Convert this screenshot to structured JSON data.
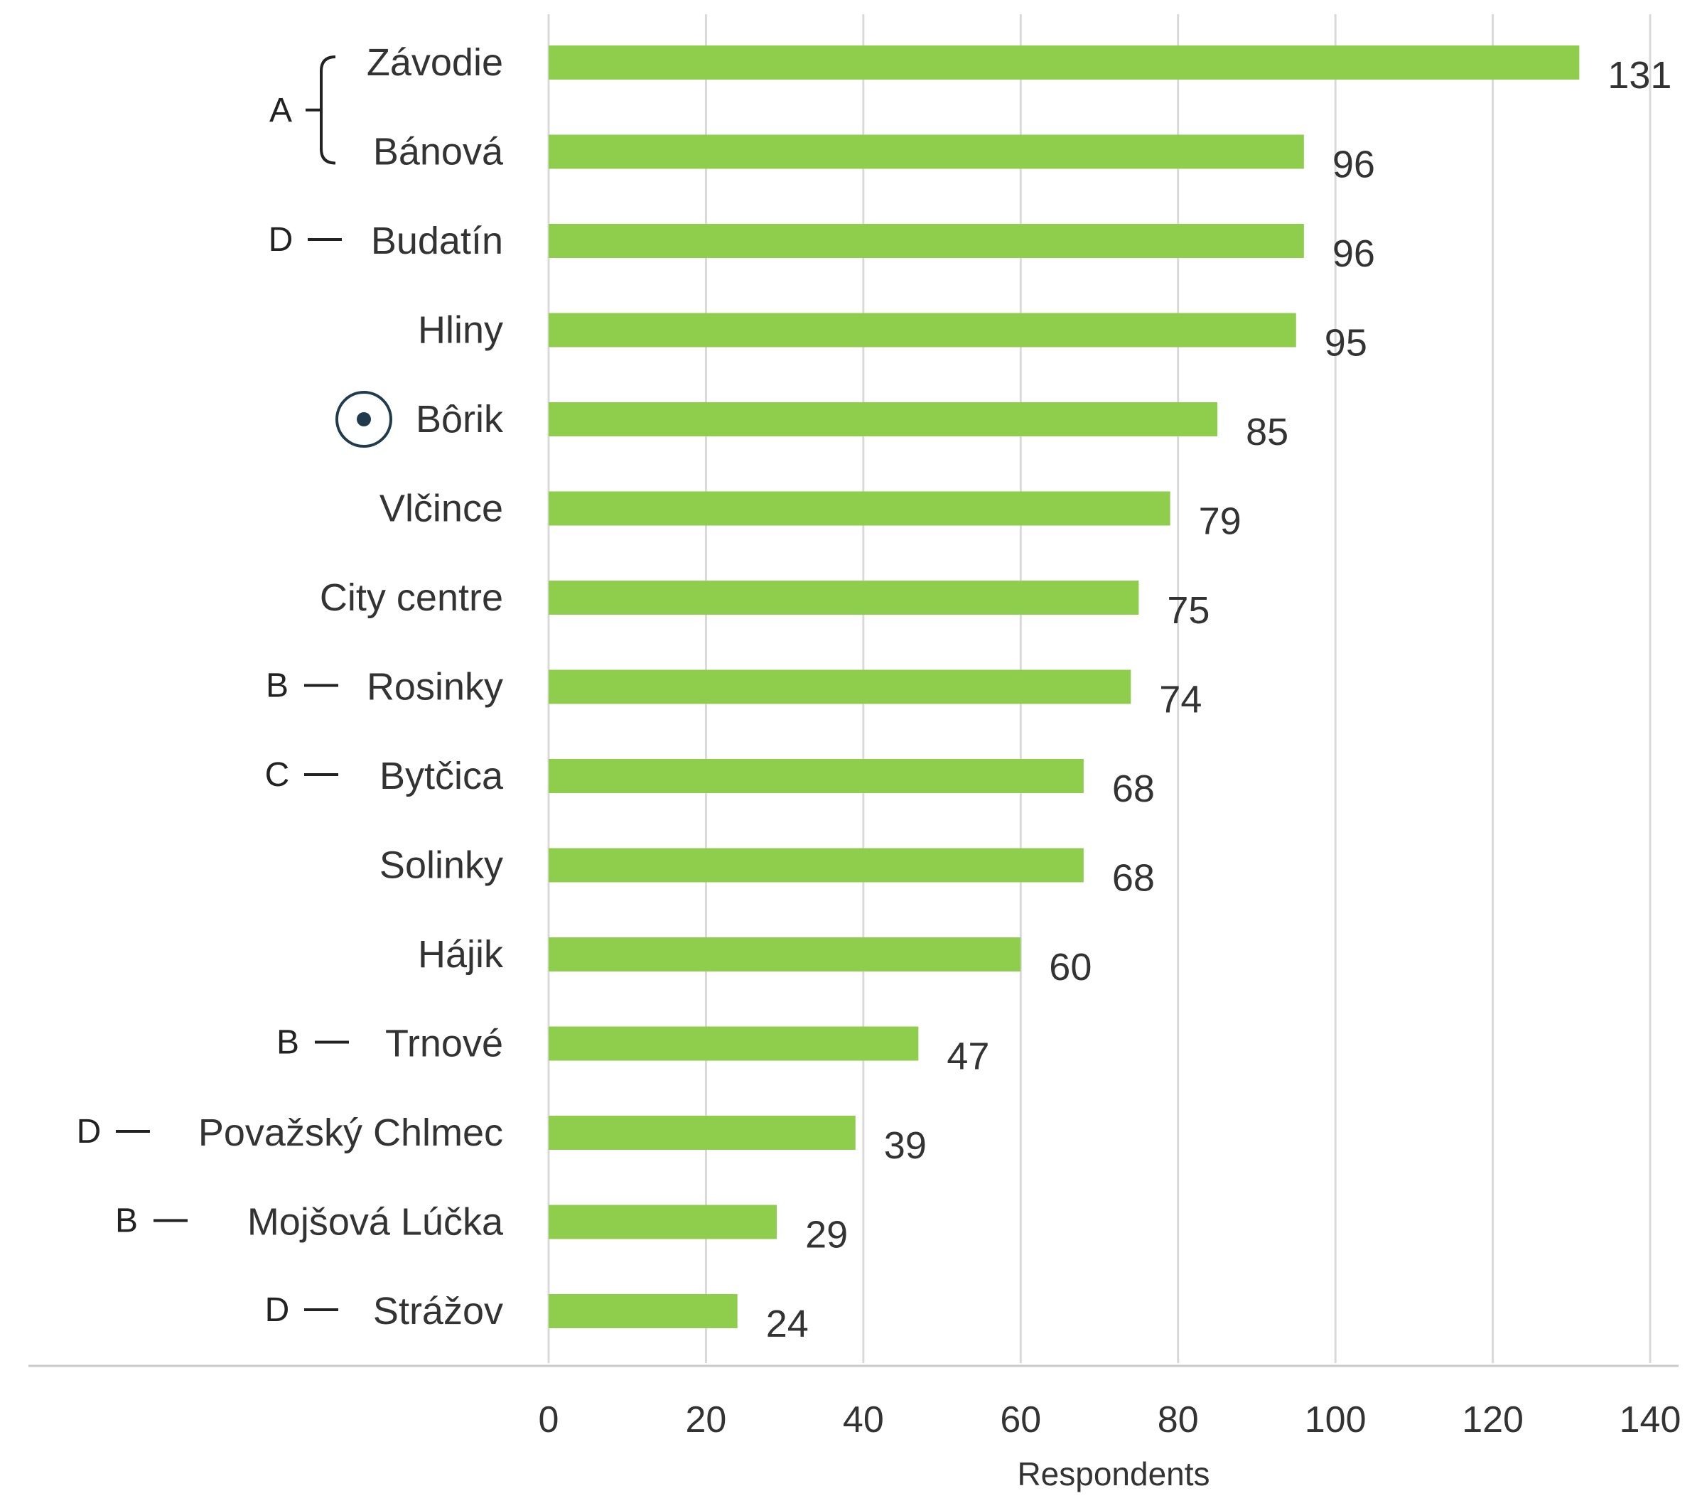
{
  "chart_data": {
    "type": "bar",
    "orientation": "horizontal",
    "categories": [
      "Závodie",
      "Bánová",
      "Budatín",
      "Hliny",
      "Bôrik",
      "Vlčince",
      "City centre",
      "Rosinky",
      "Bytčica",
      "Solinky",
      "Hájik",
      "Trnové",
      "Považský Chlmec",
      "Mojšová Lúčka",
      "Strážov"
    ],
    "values": [
      131,
      96,
      96,
      95,
      85,
      79,
      75,
      74,
      68,
      68,
      60,
      47,
      39,
      29,
      24
    ],
    "group_tags": [
      "A",
      "A",
      "D",
      "",
      "",
      "",
      "",
      "B",
      "C",
      "",
      "",
      "B",
      "D",
      "B",
      "D"
    ],
    "marked_category": "Bôrik",
    "xlabel": "Respondents",
    "xlim": [
      0,
      140
    ],
    "xticks": [
      0,
      20,
      40,
      60,
      80,
      100,
      120,
      140
    ],
    "grid": "vertical",
    "bar_color": "#8fce4c",
    "grid_color": "#d9d9d9",
    "marker_color": "#1f3b4d"
  }
}
